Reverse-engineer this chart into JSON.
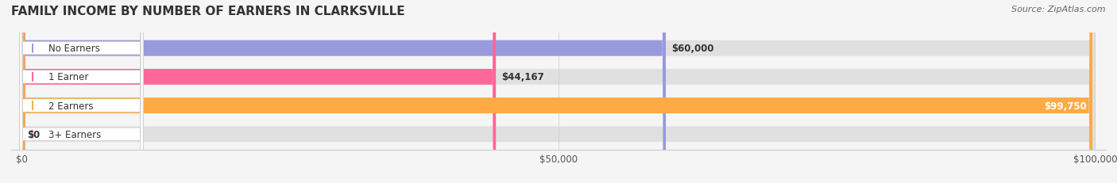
{
  "title": "FAMILY INCOME BY NUMBER OF EARNERS IN CLARKSVILLE",
  "source": "Source: ZipAtlas.com",
  "categories": [
    "No Earners",
    "1 Earner",
    "2 Earners",
    "3+ Earners"
  ],
  "values": [
    60000,
    44167,
    99750,
    0
  ],
  "bar_colors": [
    "#9999dd",
    "#ff6699",
    "#ffaa44",
    "#ffaaaa"
  ],
  "label_colors": [
    "#9999dd",
    "#ff6699",
    "#ffaa44",
    "#ffaaaa"
  ],
  "bar_labels": [
    "$60,000",
    "$44,167",
    "$99,750",
    "$0"
  ],
  "xlim": [
    0,
    100000
  ],
  "xticks": [
    0,
    50000,
    100000
  ],
  "xtick_labels": [
    "$0",
    "$50,000",
    "$100,000"
  ],
  "background_color": "#f0f0f0",
  "bar_background": "#e8e8e8",
  "title_fontsize": 11,
  "bar_height": 0.55,
  "figsize": [
    14.06,
    2.32
  ]
}
